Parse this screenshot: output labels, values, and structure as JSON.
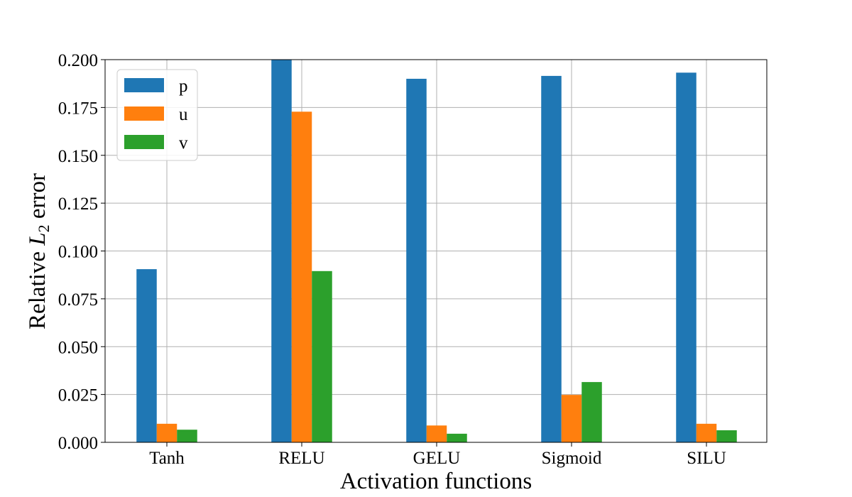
{
  "chart_data": {
    "type": "bar",
    "categories": [
      "Tanh",
      "RELU",
      "GELU",
      "Sigmoid",
      "SILU"
    ],
    "series": [
      {
        "name": "p",
        "color": "#1f77b4",
        "values": [
          0.0905,
          0.2,
          0.19,
          0.1915,
          0.1932
        ]
      },
      {
        "name": "u",
        "color": "#ff7f0e",
        "values": [
          0.0097,
          0.1728,
          0.0088,
          0.0248,
          0.0097
        ]
      },
      {
        "name": "v",
        "color": "#2ca02c",
        "values": [
          0.0066,
          0.0895,
          0.0045,
          0.0315,
          0.0063
        ]
      }
    ],
    "title": "",
    "xlabel": "Activation functions",
    "ylabel_prefix": "Relative ",
    "ylabel_symbol": "L",
    "ylabel_subscript": "2",
    "ylabel_suffix": " error",
    "ylim": [
      0,
      0.2
    ],
    "yticks": [
      "0.000",
      "0.025",
      "0.050",
      "0.075",
      "0.100",
      "0.125",
      "0.150",
      "0.175",
      "0.200"
    ],
    "grid": true,
    "legend_position": "top-left"
  }
}
